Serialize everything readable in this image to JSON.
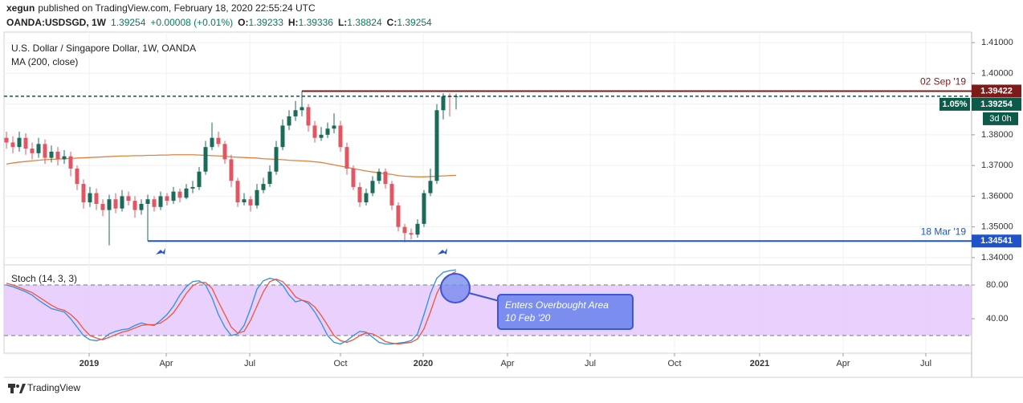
{
  "header": {
    "author": "xegun",
    "published": "published on TradingView.com, February 18, 2020 22:55:24 UTC",
    "symbol": "OANDA:USDSGD, 1W",
    "change": "+0.00008 (+0.01%)",
    "o": "O:",
    "h": "H:",
    "l": "L:",
    "c": "C:"
  },
  "chart_data": {
    "type": "candlestick",
    "title": "U.S. Dollar / Singapore Dollar, 1W, OANDA",
    "up_color": "#1b6b5a",
    "down_color": "#e25563",
    "candles": {
      "open": [
        1.379,
        1.3775,
        1.376,
        1.379,
        1.3755,
        1.374,
        1.377,
        1.3725,
        1.3745,
        1.372,
        1.373,
        1.369,
        1.364,
        1.358,
        1.361,
        1.3575,
        1.3555,
        1.359,
        1.356,
        1.36,
        1.3585,
        1.3555,
        1.3575,
        1.359,
        1.3565,
        1.36,
        1.3585,
        1.3615,
        1.3595,
        1.3625,
        1.363,
        1.368,
        1.376,
        1.379,
        1.377,
        1.372,
        1.365,
        1.358,
        1.359,
        1.357,
        1.362,
        1.364,
        1.368,
        1.376,
        1.383,
        1.386,
        1.388,
        1.389,
        1.383,
        1.379,
        1.38,
        1.382,
        1.383,
        1.376,
        1.369,
        1.363,
        1.358,
        1.361,
        1.365,
        1.368,
        1.364,
        1.357,
        1.35,
        1.348,
        1.3475,
        1.351,
        1.361,
        1.365,
        1.388,
        1.3925,
        1.39233
      ],
      "high": [
        1.381,
        1.3795,
        1.381,
        1.3805,
        1.3775,
        1.379,
        1.3785,
        1.3765,
        1.376,
        1.375,
        1.3745,
        1.37,
        1.3655,
        1.363,
        1.3625,
        1.359,
        1.3605,
        1.361,
        1.362,
        1.3615,
        1.36,
        1.359,
        1.3605,
        1.36,
        1.3615,
        1.361,
        1.363,
        1.3625,
        1.364,
        1.365,
        1.3695,
        1.378,
        1.384,
        1.381,
        1.378,
        1.3735,
        1.366,
        1.361,
        1.36,
        1.364,
        1.366,
        1.37,
        1.378,
        1.385,
        1.388,
        1.391,
        1.39422,
        1.39,
        1.3845,
        1.3825,
        1.384,
        1.387,
        1.3845,
        1.3775,
        1.37,
        1.3645,
        1.3625,
        1.3665,
        1.369,
        1.369,
        1.365,
        1.358,
        1.351,
        1.3495,
        1.3525,
        1.362,
        1.369,
        1.39,
        1.3935,
        1.3935,
        1.39336
      ],
      "low": [
        1.3755,
        1.374,
        1.3745,
        1.3735,
        1.372,
        1.3725,
        1.3705,
        1.371,
        1.37,
        1.3705,
        1.3665,
        1.362,
        1.356,
        1.3565,
        1.3555,
        1.3535,
        1.344,
        1.3545,
        1.355,
        1.357,
        1.353,
        1.354,
        1.34541,
        1.355,
        1.3555,
        1.357,
        1.3575,
        1.358,
        1.359,
        1.361,
        1.362,
        1.367,
        1.375,
        1.376,
        1.3705,
        1.363,
        1.3565,
        1.357,
        1.355,
        1.356,
        1.361,
        1.363,
        1.367,
        1.375,
        1.3815,
        1.3845,
        1.386,
        1.381,
        1.3775,
        1.378,
        1.379,
        1.3805,
        1.3745,
        1.367,
        1.362,
        1.3565,
        1.357,
        1.36,
        1.364,
        1.3625,
        1.3555,
        1.3485,
        1.345,
        1.346,
        1.3465,
        1.35,
        1.36,
        1.364,
        1.385,
        1.386,
        1.38824
      ],
      "close": [
        1.3775,
        1.376,
        1.379,
        1.3755,
        1.374,
        1.377,
        1.3725,
        1.3745,
        1.372,
        1.373,
        1.369,
        1.364,
        1.358,
        1.361,
        1.3575,
        1.3555,
        1.359,
        1.356,
        1.36,
        1.3585,
        1.3555,
        1.3575,
        1.359,
        1.3565,
        1.36,
        1.3585,
        1.3615,
        1.3595,
        1.3625,
        1.363,
        1.368,
        1.376,
        1.379,
        1.377,
        1.372,
        1.365,
        1.358,
        1.359,
        1.357,
        1.362,
        1.364,
        1.368,
        1.376,
        1.383,
        1.386,
        1.388,
        1.389,
        1.383,
        1.379,
        1.38,
        1.382,
        1.383,
        1.376,
        1.369,
        1.363,
        1.358,
        1.361,
        1.365,
        1.368,
        1.364,
        1.357,
        1.35,
        1.348,
        1.3475,
        1.351,
        1.361,
        1.365,
        1.388,
        1.3925,
        1.3923,
        1.39254
      ]
    },
    "ma": {
      "name": "MA (200, close)",
      "color": "#e0823f",
      "values": [
        1.3705,
        1.3708,
        1.3711,
        1.3713,
        1.3715,
        1.3717,
        1.3719,
        1.372,
        1.3721,
        1.3722,
        1.3723,
        1.3724,
        1.3725,
        1.3726,
        1.3727,
        1.3728,
        1.3729,
        1.373,
        1.3731,
        1.3731,
        1.3732,
        1.3732,
        1.3733,
        1.3733,
        1.3734,
        1.3734,
        1.3735,
        1.3735,
        1.3735,
        1.3735,
        1.3734,
        1.3733,
        1.3732,
        1.3731,
        1.373,
        1.3728,
        1.3727,
        1.3726,
        1.3725,
        1.3724,
        1.3722,
        1.3721,
        1.372,
        1.3719,
        1.3717,
        1.3716,
        1.3715,
        1.3714,
        1.3712,
        1.371,
        1.3706,
        1.3702,
        1.3698,
        1.3694,
        1.369,
        1.3686,
        1.3682,
        1.3679,
        1.3676,
        1.3673,
        1.3671,
        1.3667,
        1.3665,
        1.3664,
        1.3663,
        1.3663,
        1.3664,
        1.3665,
        1.3666,
        1.3667,
        1.3668
      ]
    },
    "levels": [
      {
        "label": "02 Sep '19",
        "value": 1.39422,
        "color": "#7d1a1a",
        "at": "high"
      },
      {
        "label": "18 Mar '19",
        "value": 1.34541,
        "color": "#1e53c9",
        "at": "low"
      }
    ],
    "last_change": "1.05%",
    "countdown": "3d 0h",
    "last_color": "#0b5a4a",
    "ylim": [
      1.33763,
      1.41342
    ],
    "yticks": [
      {
        "value": 1.34,
        "label": "1.34000"
      },
      {
        "value": 1.35,
        "label": "1.35000"
      },
      {
        "value": 1.36,
        "label": "1.36000"
      },
      {
        "value": 1.37,
        "label": "1.37000"
      },
      {
        "value": 1.38,
        "label": "1.38000"
      },
      {
        "value": 1.39,
        "label": "1.39000"
      },
      {
        "value": 1.4,
        "label": "1.40000"
      },
      {
        "value": 1.41,
        "label": "1.41000"
      }
    ],
    "xlim": [
      -0.375,
      150.25
    ],
    "xticks": [
      {
        "value": 12.875,
        "label": "2019"
      },
      {
        "value": 24.875,
        "label": "Apr"
      },
      {
        "value": 37.875,
        "label": "Jul"
      },
      {
        "value": 52,
        "label": "Oct"
      },
      {
        "value": 64.875,
        "label": "2020"
      },
      {
        "value": 78,
        "label": "Apr"
      },
      {
        "value": 90.875,
        "label": "Jul"
      },
      {
        "value": 104,
        "label": "Oct"
      },
      {
        "value": 117.25,
        "label": "2021"
      },
      {
        "value": 130.25,
        "label": "Apr"
      },
      {
        "value": 143.125,
        "label": "Jul"
      }
    ],
    "grid": true,
    "indicator": {
      "type": "line",
      "name": "Stoch (14, 3, 3)",
      "ylim": [
        -0.95,
        103.8
      ],
      "yticks": [
        {
          "value": 40,
          "label": "40.00"
        },
        {
          "value": 80,
          "label": "80.00"
        }
      ],
      "band": [
        20,
        80
      ],
      "band_color": "#e6c8fb",
      "series": [
        {
          "color": "#2f8fe8",
          "values": [
            80,
            78,
            75,
            72,
            68,
            62,
            57,
            52,
            50,
            48,
            40,
            30,
            20,
            15,
            14,
            16,
            22,
            25,
            27,
            28,
            32,
            35,
            33,
            32,
            38,
            45,
            55,
            68,
            78,
            84,
            85,
            80,
            65,
            45,
            30,
            20,
            22,
            32,
            52,
            75,
            85,
            88,
            86,
            80,
            68,
            60,
            62,
            58,
            48,
            35,
            20,
            12,
            10,
            14,
            20,
            25,
            24,
            18,
            12,
            10,
            10,
            11,
            12,
            14,
            22,
            45,
            70,
            88,
            95,
            97,
            98
          ]
        },
        {
          "color": "#f0553a",
          "values": [
            82,
            80,
            77,
            74,
            71,
            66,
            61,
            56,
            52,
            50,
            45,
            38,
            28,
            20,
            17,
            15,
            18,
            21,
            24,
            26,
            29,
            32,
            33,
            33,
            35,
            40,
            47,
            58,
            70,
            79,
            83,
            83,
            76,
            60,
            45,
            30,
            23,
            25,
            38,
            55,
            72,
            84,
            87,
            84,
            76,
            66,
            62,
            60,
            54,
            44,
            32,
            20,
            14,
            12,
            15,
            20,
            23,
            22,
            18,
            13,
            11,
            10,
            11,
            12,
            16,
            28,
            48,
            70,
            85,
            92,
            96
          ]
        }
      ]
    },
    "annotation": {
      "lines": [
        "Enters Overbought Area",
        "10 Feb '20"
      ]
    }
  },
  "footer": {
    "brand": "TradingView"
  }
}
